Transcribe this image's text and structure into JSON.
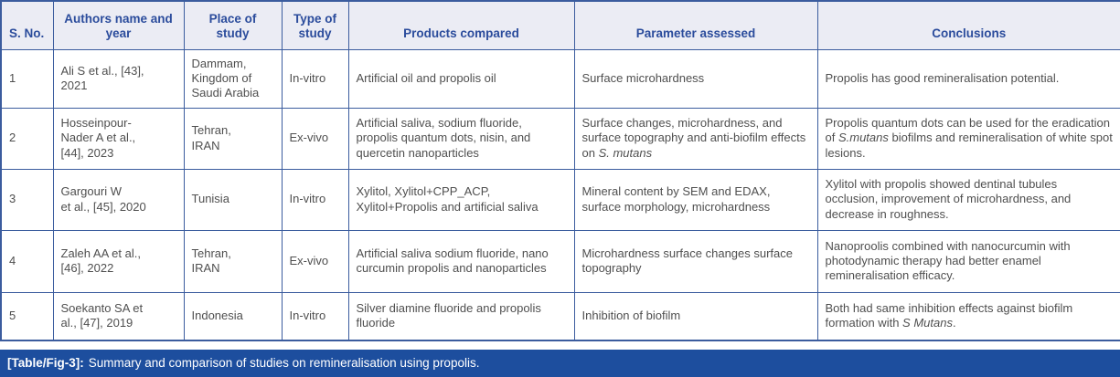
{
  "colors": {
    "border": "#3b5c9e",
    "header_bg": "#ebecf4",
    "header_text": "#2b4c9c",
    "body_text": "#4f4f4f",
    "caption_bg": "#1d4e9e",
    "caption_text": "#ffffff"
  },
  "table": {
    "columns": [
      "S. No.",
      "Authors name and year",
      "Place of study",
      "Type of study",
      "Products compared",
      "Parameter assessed",
      "Conclusions"
    ],
    "rows": [
      {
        "sno": "1",
        "authors": "Ali S et al., [43],\n2021",
        "place": "Dammam,\nKingdom of\nSaudi Arabia",
        "type": "In-vitro",
        "products": [
          {
            "t": "Artificial oil and propolis oil"
          }
        ],
        "parameter": [
          {
            "t": "Surface microhardness"
          }
        ],
        "conclusions": [
          {
            "t": "Propolis has good remineralisation potential."
          }
        ]
      },
      {
        "sno": "2",
        "authors": "Hosseinpour-\nNader A et al.,\n[44], 2023",
        "place": "Tehran,\nIRAN",
        "type": "Ex-vivo",
        "products": [
          {
            "t": "Artificial saliva, sodium fluoride, propolis quantum dots, nisin, and quercetin nanoparticles"
          }
        ],
        "parameter": [
          {
            "t": "Surface changes, microhardness, and surface topography and anti-biofilm effects on "
          },
          {
            "t": "S. mutans",
            "i": true
          }
        ],
        "conclusions": [
          {
            "t": "Propolis quantum dots can be used for the eradication of "
          },
          {
            "t": "S.mutans",
            "i": true
          },
          {
            "t": " biofilms and remineralisation of white spot lesions."
          }
        ]
      },
      {
        "sno": "3",
        "authors": "Gargouri W\net al., [45], 2020",
        "place": "Tunisia",
        "type": "In-vitro",
        "products": [
          {
            "t": "Xylitol, Xylitol+CPP_ACP, Xylitol+Propolis and artificial saliva"
          }
        ],
        "parameter": [
          {
            "t": "Mineral content by SEM and EDAX, surface morphology, microhardness"
          }
        ],
        "conclusions": [
          {
            "t": "Xylitol with propolis showed dentinal tubules occlusion, improvement of microhardness, and decrease in roughness."
          }
        ]
      },
      {
        "sno": "4",
        "authors": "Zaleh AA et al.,\n[46], 2022",
        "place": "Tehran,\nIRAN",
        "type": "Ex-vivo",
        "products": [
          {
            "t": "Artificial saliva sodium fluoride, nano curcumin propolis and nanoparticles"
          }
        ],
        "parameter": [
          {
            "t": "Microhardness surface changes surface topography"
          }
        ],
        "conclusions": [
          {
            "t": "Nanoproolis combined with nanocurcumin with photodynamic therapy had better enamel remineralisation efficacy."
          }
        ]
      },
      {
        "sno": "5",
        "authors": "Soekanto SA et\nal., [47], 2019",
        "place": "Indonesia",
        "type": "In-vitro",
        "products": [
          {
            "t": "Silver diamine fluoride and propolis fluoride"
          }
        ],
        "parameter": [
          {
            "t": "Inhibition of biofilm"
          }
        ],
        "conclusions": [
          {
            "t": "Both had same inhibition effects against biofilm formation with "
          },
          {
            "t": "S Mutans",
            "i": true
          },
          {
            "t": "."
          }
        ]
      }
    ],
    "caption": {
      "label": "[Table/Fig-3]:",
      "text": "Summary and comparison of studies on remineralisation using propolis."
    }
  }
}
